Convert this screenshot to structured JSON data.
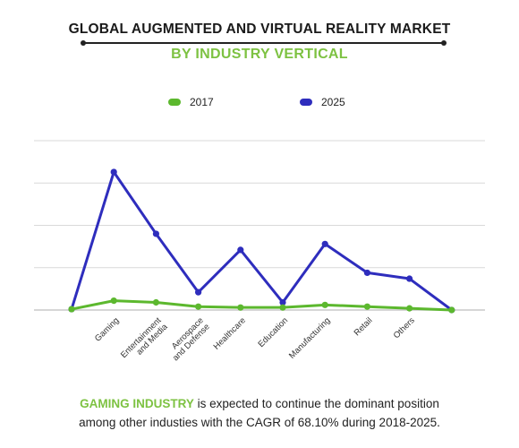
{
  "title": "GLOBAL AUGMENTED AND VIRTUAL REALITY MARKET",
  "subtitle": "BY INDUSTRY VERTICAL",
  "footer": {
    "highlight": "GAMING INDUSTRY",
    "line1_rest": " is expected to continue the dominant position",
    "line2": "among other industies with the CAGR of 68.10% during 2018-2025."
  },
  "colors": {
    "series_2017": "#5cb82e",
    "series_2025": "#2e2dbd",
    "grid": "#d9d9d9",
    "accent": "#7dc242"
  },
  "chart_data": {
    "type": "line",
    "categories": [
      "",
      "Gaming",
      "Entertainment and Media",
      "Aerospace and Defense",
      "Healthcare",
      "Education",
      "Manufacturing",
      "Retail",
      "Others",
      ""
    ],
    "x_tick_labels": [
      [
        "Gaming"
      ],
      [
        "Entertainment",
        "and Media"
      ],
      [
        "Aerospace",
        "and Defense"
      ],
      [
        "Healthcare"
      ],
      [
        "Education"
      ],
      [
        "Manufacturing"
      ],
      [
        "Retail"
      ],
      [
        "Others"
      ]
    ],
    "series": [
      {
        "name": "2017",
        "values": [
          0.1,
          1.1,
          0.9,
          0.4,
          0.3,
          0.3,
          0.6,
          0.4,
          0.2,
          0.0
        ]
      },
      {
        "name": "2025",
        "values": [
          0.1,
          16.3,
          9.0,
          2.1,
          7.1,
          0.9,
          7.8,
          4.4,
          3.7,
          0.0
        ]
      }
    ],
    "ylim": [
      0,
      20
    ],
    "grid": true,
    "legend_position": "top"
  }
}
